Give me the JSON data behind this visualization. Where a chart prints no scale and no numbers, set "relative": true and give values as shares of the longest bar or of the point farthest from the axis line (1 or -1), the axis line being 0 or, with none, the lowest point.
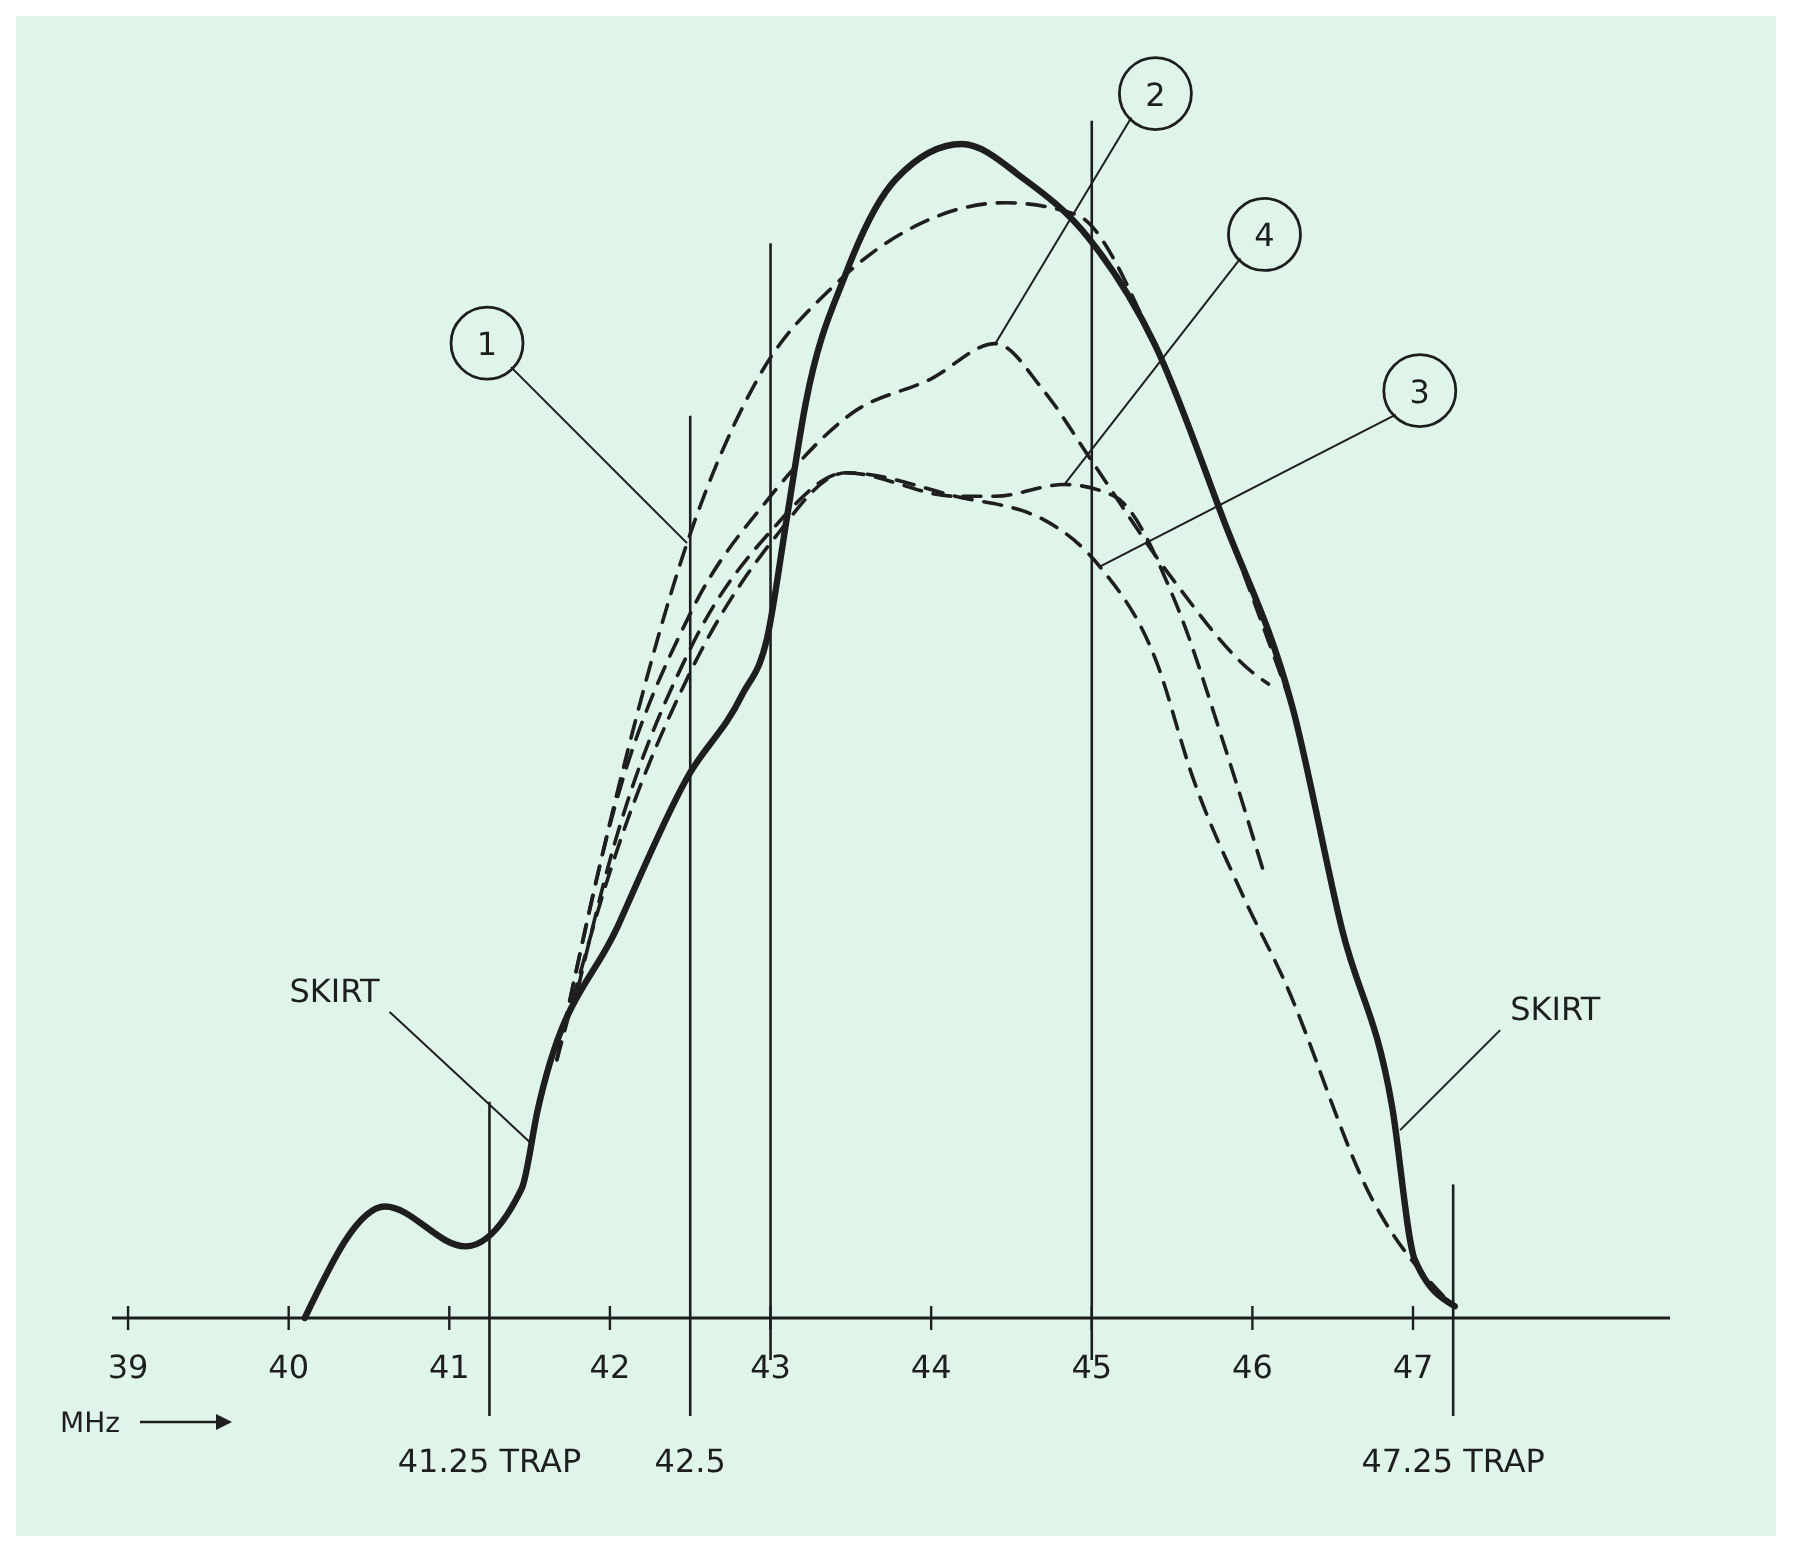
{
  "chart_data": {
    "type": "line",
    "relative": true,
    "xlabel": "MHz",
    "xlim": [
      38.9,
      48.6
    ],
    "xticks": [
      39,
      40,
      41,
      42,
      43,
      44,
      45,
      46,
      47
    ],
    "tick_labels": "x",
    "series": [
      {
        "color": "#1e1e1e",
        "line_style": "solid",
        "x": [
          40.1,
          40.6,
          41.1,
          41.45,
          41.55,
          42.05,
          42.48,
          42.82,
          42.98,
          43.1,
          43.22,
          43.47,
          43.78,
          44.19,
          44.58,
          44.98,
          45.39,
          45.82,
          46.25,
          46.56,
          46.87,
          47.01,
          47.26
        ],
        "values": [
          0,
          0.095,
          0.061,
          0.11,
          0.177,
          0.334,
          0.46,
          0.53,
          0.58,
          0.68,
          0.78,
          0.89,
          0.97,
          1,
          0.97,
          0.92,
          0.83,
          0.68,
          0.52,
          0.33,
          0.18,
          0.05,
          0.01
        ]
      },
      {
        "name": "1",
        "color": "#1e1e1e",
        "line_style": "dashed",
        "x": [
          41.67,
          42.05,
          42.48,
          42.92,
          43.4,
          43.9,
          44.46,
          44.9,
          45.39,
          45.82,
          46.25
        ],
        "values": [
          0.22,
          0.45,
          0.66,
          0.8,
          0.88,
          0.93,
          0.95,
          0.94,
          0.83,
          0.68,
          0.52
        ]
      },
      {
        "name": "2",
        "color": "#1e1e1e",
        "line_style": "dashed",
        "x": [
          41.75,
          42,
          42.5,
          43,
          43.5,
          44,
          44.4,
          44.7,
          45,
          45.5,
          46,
          46.1
        ],
        "values": [
          0.27,
          0.42,
          0.6,
          0.7,
          0.77,
          0.8,
          0.83,
          0.79,
          0.73,
          0.63,
          0.55,
          0.54
        ]
      },
      {
        "name": "3",
        "color": "#1e1e1e",
        "line_style": "dashed",
        "x": [
          41.67,
          42,
          42.5,
          43,
          43.47,
          44.15,
          44.7,
          45.05,
          45.4,
          45.63,
          45.94,
          46.19,
          46.75,
          47.25
        ],
        "values": [
          0.22,
          0.38,
          0.55,
          0.66,
          0.72,
          0.7,
          0.68,
          0.64,
          0.56,
          0.46,
          0.36,
          0.29,
          0.1,
          0.01
        ]
      },
      {
        "name": "4",
        "color": "#1e1e1e",
        "line_style": "dashed",
        "x": [
          41.8,
          42,
          42.5,
          43,
          43.47,
          44.15,
          44.4,
          44.83,
          45.14,
          45.52,
          45.82,
          46.07
        ],
        "values": [
          0.28,
          0.39,
          0.57,
          0.67,
          0.72,
          0.7,
          0.7,
          0.71,
          0.7,
          0.61,
          0.49,
          0.38
        ]
      }
    ],
    "ref_lines": [
      {
        "axis": "x",
        "value": 41.25,
        "label": "41.25 TRAP"
      },
      {
        "axis": "x",
        "value": 42.5,
        "label": "42.5"
      },
      {
        "axis": "x",
        "value": 43
      },
      {
        "axis": "x",
        "value": 45
      },
      {
        "axis": "x",
        "value": 47.25,
        "label": "47.25 TRAP"
      }
    ],
    "annotations": [
      {
        "text": "SKIRT",
        "x": 41.5,
        "y": 0.15
      },
      {
        "text": "SKIRT",
        "x": 46.92,
        "y": 0.16
      }
    ]
  }
}
